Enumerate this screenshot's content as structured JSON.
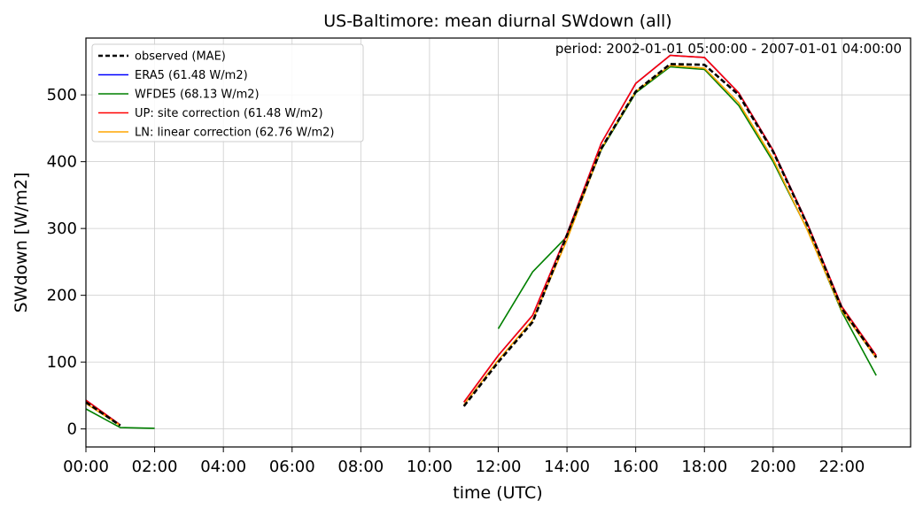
{
  "chart_data": {
    "type": "line",
    "title": "US-Baltimore: mean diurnal SWdown (all)",
    "xlabel": "time (UTC)",
    "ylabel": "SWdown [W/m2]",
    "annotation": "period: 2002-01-01 05:00:00 - 2007-01-01 04:00:00",
    "xlim": [
      0,
      24
    ],
    "ylim": [
      -27,
      585
    ],
    "x_ticks": [
      0,
      2,
      4,
      6,
      8,
      10,
      12,
      14,
      16,
      18,
      20,
      22
    ],
    "x_tick_labels": [
      "00:00",
      "02:00",
      "04:00",
      "06:00",
      "08:00",
      "10:00",
      "12:00",
      "14:00",
      "16:00",
      "18:00",
      "20:00",
      "22:00"
    ],
    "y_ticks": [
      0,
      100,
      200,
      300,
      400,
      500
    ],
    "y_tick_labels": [
      "0",
      "100",
      "200",
      "300",
      "400",
      "500"
    ],
    "grid": true,
    "legend_position": "top-left",
    "series": [
      {
        "name": "WFDE5 (68.13 W/m2)",
        "color": "#008000",
        "dash": "solid",
        "x": [
          0,
          1,
          2,
          null,
          12,
          13,
          14,
          15,
          16,
          17,
          18,
          19,
          20,
          21,
          22,
          23
        ],
        "values": [
          30,
          2,
          1,
          null,
          150,
          235,
          288,
          418,
          503,
          542,
          538,
          484,
          400,
          298,
          175,
          80
        ]
      },
      {
        "name": "ERA5 (61.48 W/m2)",
        "color": "#0000ff",
        "dash": "solid",
        "x": [
          0,
          1,
          null,
          11,
          12,
          13,
          14,
          15,
          16,
          17,
          18,
          19,
          20,
          21,
          22,
          23
        ],
        "values": [
          43,
          6,
          null,
          40,
          110,
          170,
          292,
          428,
          517,
          559,
          556,
          503,
          417,
          307,
          183,
          110
        ]
      },
      {
        "name": "UP: site correction (61.48 W/m2)",
        "color": "#ff0000",
        "dash": "solid",
        "x": [
          0,
          1,
          null,
          11,
          12,
          13,
          14,
          15,
          16,
          17,
          18,
          19,
          20,
          21,
          22,
          23
        ],
        "values": [
          43,
          6,
          null,
          40,
          110,
          170,
          292,
          428,
          517,
          559,
          556,
          503,
          417,
          307,
          183,
          110
        ]
      },
      {
        "name": "LN: linear correction (62.76 W/m2)",
        "color": "#ffa500",
        "dash": "solid",
        "x": [
          0,
          1,
          null,
          11,
          12,
          13,
          14,
          15,
          16,
          17,
          18,
          19,
          20,
          21,
          22,
          23
        ],
        "values": [
          38,
          5,
          null,
          36,
          103,
          163,
          283,
          420,
          505,
          544,
          540,
          488,
          404,
          297,
          177,
          106
        ]
      },
      {
        "name": "observed (MAE)",
        "color": "#000000",
        "dash": "dashed",
        "x": [
          0,
          1,
          null,
          11,
          12,
          13,
          14,
          15,
          16,
          17,
          18,
          19,
          20,
          21,
          22,
          23
        ],
        "values": [
          40,
          5,
          null,
          34,
          100,
          160,
          290,
          420,
          505,
          546,
          545,
          500,
          415,
          305,
          180,
          107
        ]
      }
    ],
    "legend_order": [
      "observed (MAE)",
      "ERA5 (61.48 W/m2)",
      "WFDE5 (68.13 W/m2)",
      "UP: site correction (61.48 W/m2)",
      "LN: linear correction (62.76 W/m2)"
    ]
  }
}
